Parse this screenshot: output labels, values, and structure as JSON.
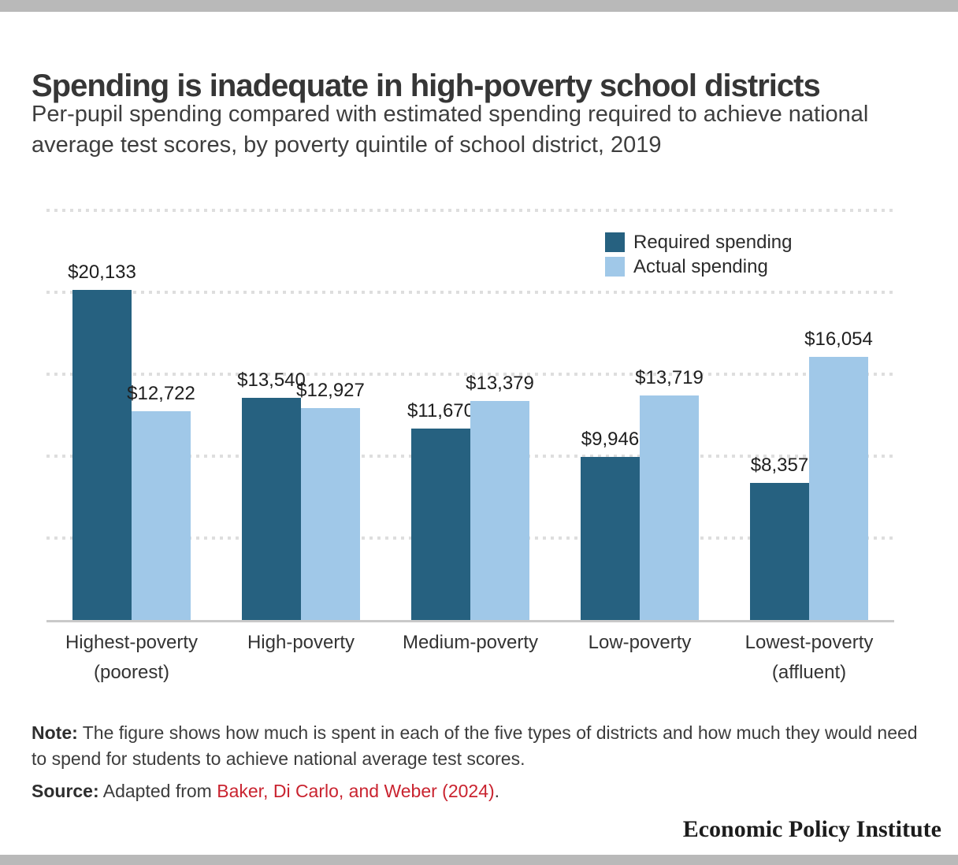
{
  "header": {
    "title": "Spending is inadequate in high-poverty school districts",
    "subtitle": "Per-pupil spending compared with estimated spending required to achieve national average test scores, by poverty quintile of school district, 2019"
  },
  "chart_data": {
    "type": "bar",
    "title": "Spending is inadequate in high-poverty school districts",
    "subtitle": "Per-pupil spending compared with estimated spending required to achieve national average test scores, by poverty quintile of school district, 2019",
    "categories": [
      "Highest-poverty (poorest)",
      "High-poverty",
      "Medium-poverty",
      "Low-poverty",
      "Lowest-poverty (affluent)"
    ],
    "category_lines": [
      [
        "Highest-poverty",
        "(poorest)"
      ],
      [
        "High-poverty"
      ],
      [
        "Medium-poverty"
      ],
      [
        "Low-poverty"
      ],
      [
        "Lowest-poverty",
        "(affluent)"
      ]
    ],
    "series": [
      {
        "name": "Required spending",
        "color": "#266180",
        "values": [
          20133,
          13540,
          11670,
          9946,
          8357
        ],
        "labels": [
          "$20,133",
          "$13,540",
          "$11,670",
          "$9,946",
          "$8,357"
        ]
      },
      {
        "name": "Actual spending",
        "color": "#a0c8e8",
        "values": [
          12722,
          12927,
          13379,
          13719,
          16054
        ],
        "labels": [
          "$12,722",
          "$12,927",
          "$13,379",
          "$13,719",
          "$16,054"
        ]
      }
    ],
    "xlabel": "",
    "ylabel": "",
    "ylim": [
      0,
      25000
    ],
    "gridline_interval": 5000,
    "grid": "dotted-horizontal",
    "legend_position": "top-right",
    "value_labels": "above-bars"
  },
  "note": {
    "label": "Note:",
    "text": " The figure shows how much is spent in each of the five types of districts and how much they would need to spend for students to achieve national average test scores."
  },
  "source": {
    "label": "Source:",
    "prefix": " Adapted from ",
    "link": "Baker, Di Carlo, and Weber (2024)",
    "suffix": "."
  },
  "footer": {
    "brand": "Economic Policy Institute"
  },
  "colors": {
    "required_bar": "#266180",
    "actual_bar": "#a0c8e8",
    "link_red": "#c9232f",
    "strip_gray": "#b9b9b9",
    "gridline": "#dedede",
    "axis_line": "#c9c9c9"
  }
}
